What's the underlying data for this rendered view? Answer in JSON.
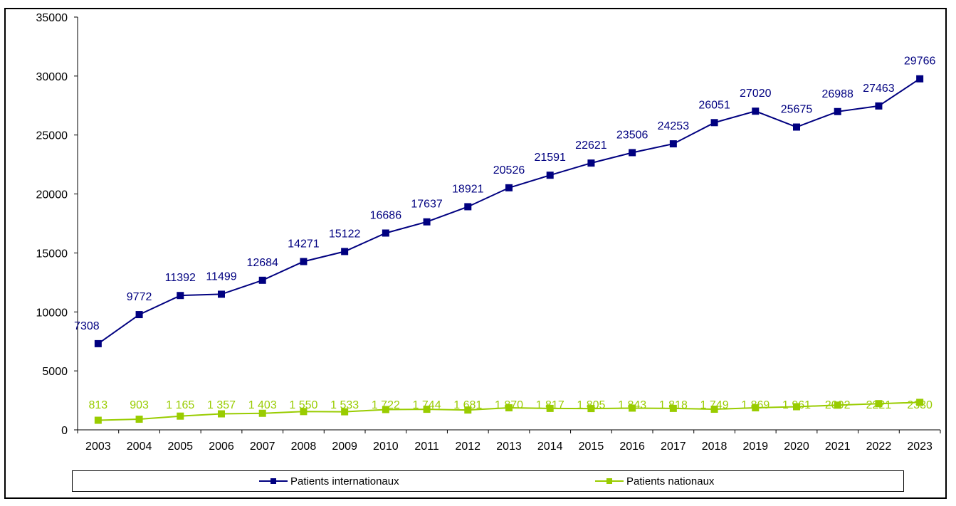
{
  "chart_data": {
    "type": "line",
    "categories": [
      "2003",
      "2004",
      "2005",
      "2006",
      "2007",
      "2008",
      "2009",
      "2010",
      "2011",
      "2012",
      "2013",
      "2014",
      "2015",
      "2016",
      "2017",
      "2018",
      "2019",
      "2020",
      "2021",
      "2022",
      "2023"
    ],
    "ylim": [
      0,
      35000
    ],
    "yticks": [
      0,
      5000,
      10000,
      15000,
      20000,
      25000,
      30000,
      35000
    ],
    "grid": false,
    "legend_position": "bottom",
    "series": [
      {
        "name": "Patients internationaux",
        "color": "#000080",
        "values": [
          7308,
          9772,
          11392,
          11499,
          12684,
          14271,
          15122,
          16686,
          17637,
          18921,
          20526,
          21591,
          22621,
          23506,
          24253,
          26051,
          27020,
          25675,
          26988,
          27463,
          29766
        ],
        "labels": [
          "7308",
          "9772",
          "11392",
          "11499",
          "12684",
          "14271",
          "15122",
          "16686",
          "17637",
          "18921",
          "20526",
          "21591",
          "22621",
          "23506",
          "24253",
          "26051",
          "27020",
          "25675",
          "26988",
          "27463",
          "29766"
        ]
      },
      {
        "name": "Patients nationaux",
        "color": "#99CC00",
        "values": [
          813,
          903,
          1165,
          1357,
          1403,
          1550,
          1533,
          1722,
          1744,
          1681,
          1870,
          1817,
          1805,
          1843,
          1818,
          1749,
          1869,
          1961,
          2092,
          2221,
          2330
        ],
        "labels": [
          "813",
          "903",
          "1 165",
          "1 357",
          "1 403",
          "1 550",
          "1 533",
          "1 722",
          "1 744",
          "1 681",
          "1 870",
          "1 817",
          "1 805",
          "1 843",
          "1 818",
          "1 749",
          "1 869",
          "1 961",
          "2092",
          "2221",
          "2330"
        ]
      }
    ]
  }
}
